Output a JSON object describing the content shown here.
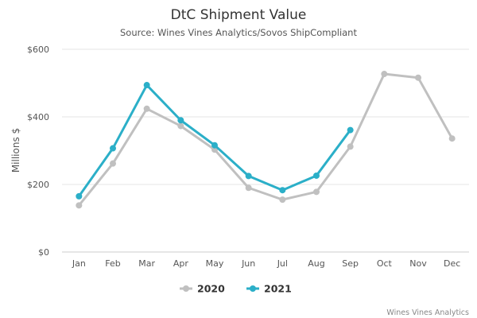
{
  "chart_data": {
    "type": "line",
    "title": "DtC Shipment Value",
    "subtitle": "Source: Wines Vines Analytics/Sovos ShipCompliant",
    "ylabel": "Millions $",
    "xlabel": "",
    "categories": [
      "Jan",
      "Feb",
      "Mar",
      "Apr",
      "May",
      "Jun",
      "Jul",
      "Aug",
      "Sep",
      "Oct",
      "Nov",
      "Dec"
    ],
    "ylim": [
      0,
      600
    ],
    "yticks": [
      0,
      200,
      400,
      600
    ],
    "ytick_labels": [
      "$0",
      "$200",
      "$400",
      "$600"
    ],
    "series": [
      {
        "name": "2020",
        "color": "#c0c0c0",
        "values": [
          138,
          262,
          424,
          373,
          303,
          190,
          155,
          178,
          312,
          527,
          516,
          336
        ]
      },
      {
        "name": "2021",
        "color": "#2bafc8",
        "values": [
          165,
          307,
          494,
          390,
          316,
          225,
          183,
          226,
          361,
          null,
          null,
          null
        ]
      }
    ],
    "legend": "bottom-center",
    "grid": true,
    "credit": "Wines Vines Analytics"
  }
}
